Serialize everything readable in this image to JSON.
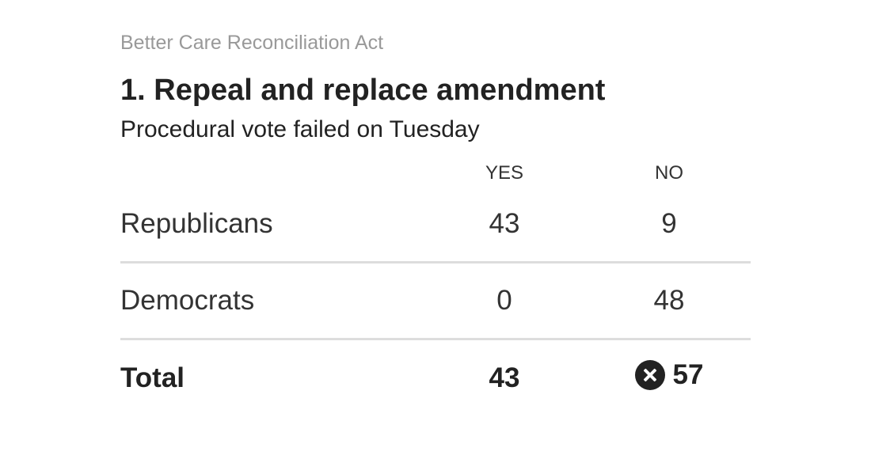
{
  "kicker": "Better Care Reconciliation Act",
  "headline": "1. Repeal and replace amendment",
  "subhead": "Procedural vote failed on Tuesday",
  "icons": {
    "result": "x-circle-icon"
  },
  "colors": {
    "text": "#333333",
    "muted": "#999999",
    "rule": "#dddddd",
    "icon": "#222222"
  },
  "chart_data": {
    "type": "table",
    "columns": [
      "YES",
      "NO"
    ],
    "rows": [
      {
        "label": "Republicans",
        "yes": "43",
        "no": "9"
      },
      {
        "label": "Democrats",
        "yes": "0",
        "no": "48"
      }
    ],
    "total": {
      "label": "Total",
      "yes": "43",
      "no": "57",
      "failed_marker": "no"
    }
  }
}
